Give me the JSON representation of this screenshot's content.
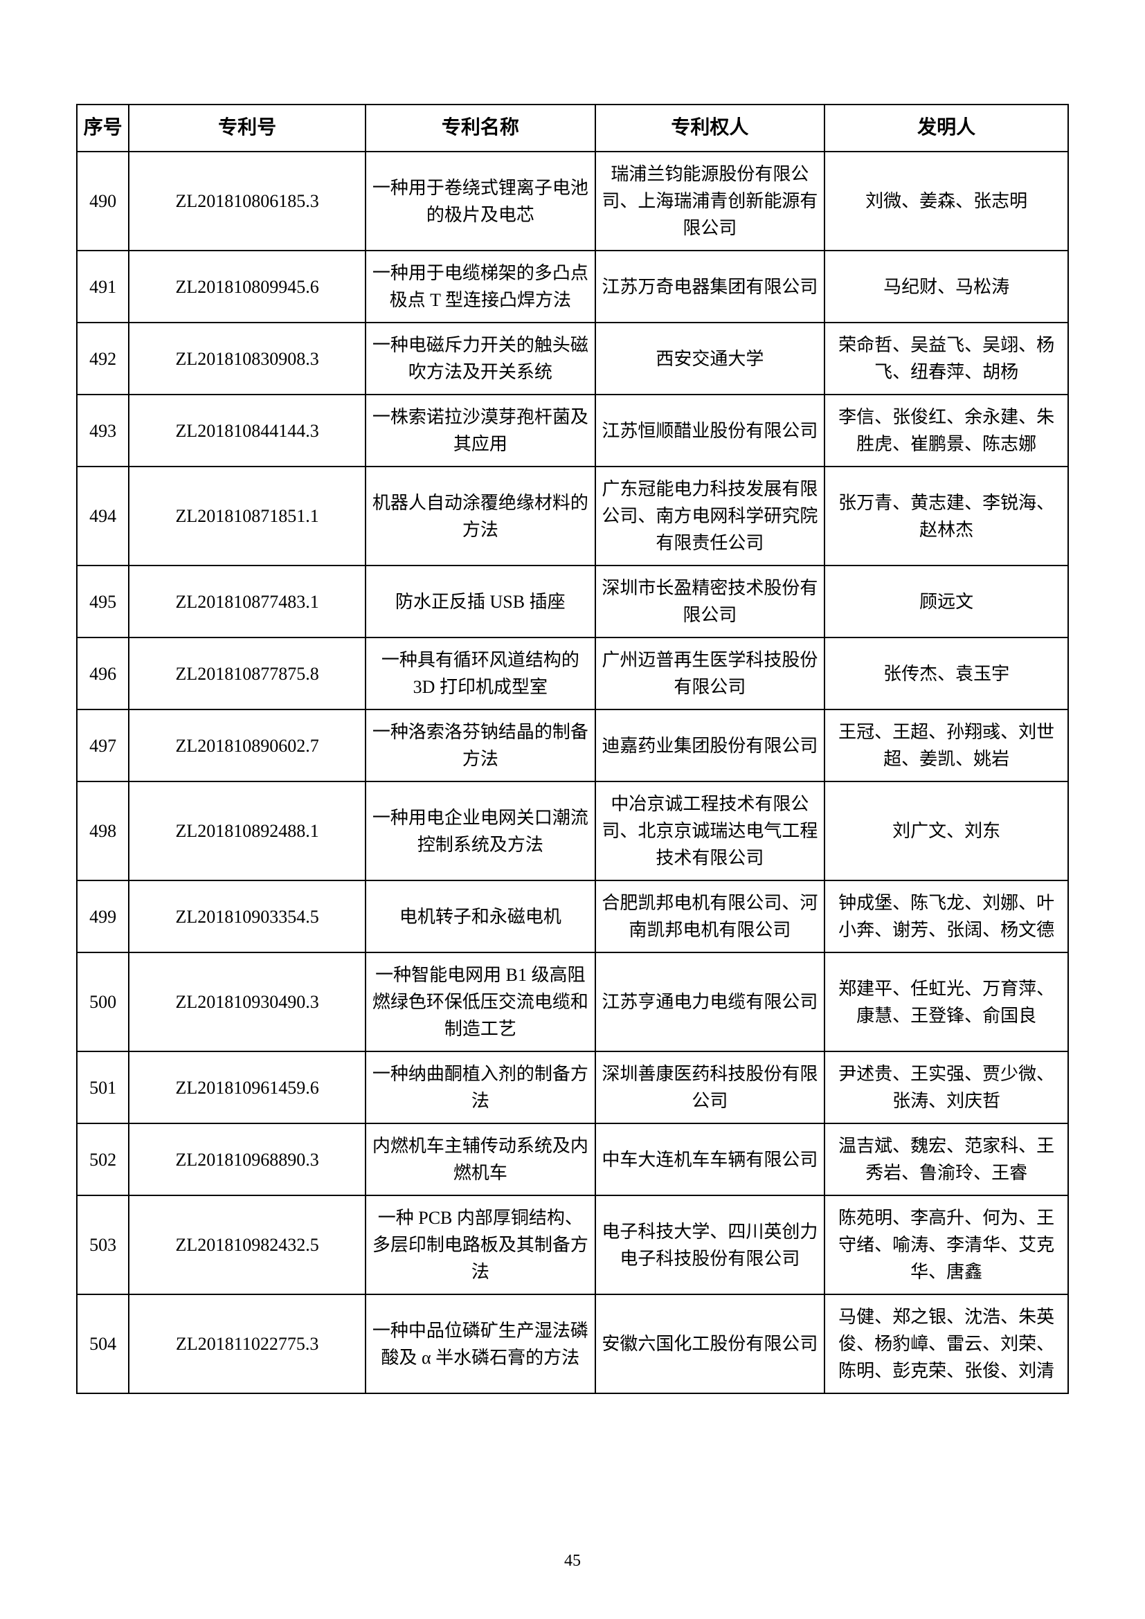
{
  "page_number": "45",
  "table": {
    "columns": [
      "序号",
      "专利号",
      "专利名称",
      "专利权人",
      "发明人"
    ],
    "rows": [
      {
        "seq": "490",
        "patent_no": "ZL201810806185.3",
        "name": "一种用于卷绕式锂离子电池的极片及电芯",
        "holder": "瑞浦兰钧能源股份有限公司、上海瑞浦青创新能源有限公司",
        "inventor": "刘微、姜森、张志明"
      },
      {
        "seq": "491",
        "patent_no": "ZL201810809945.6",
        "name": "一种用于电缆梯架的多凸点极点 T 型连接凸焊方法",
        "holder": "江苏万奇电器集团有限公司",
        "inventor": "马纪财、马松涛"
      },
      {
        "seq": "492",
        "patent_no": "ZL201810830908.3",
        "name": "一种电磁斥力开关的触头磁吹方法及开关系统",
        "holder": "西安交通大学",
        "inventor": "荣命哲、吴益飞、吴翊、杨飞、纽春萍、胡杨"
      },
      {
        "seq": "493",
        "patent_no": "ZL201810844144.3",
        "name": "一株索诺拉沙漠芽孢杆菌及其应用",
        "holder": "江苏恒顺醋业股份有限公司",
        "inventor": "李信、张俊红、余永建、朱胜虎、崔鹏景、陈志娜"
      },
      {
        "seq": "494",
        "patent_no": "ZL201810871851.1",
        "name": "机器人自动涂覆绝缘材料的方法",
        "holder": "广东冠能电力科技发展有限公司、南方电网科学研究院有限责任公司",
        "inventor": "张万青、黄志建、李锐海、赵林杰"
      },
      {
        "seq": "495",
        "patent_no": "ZL201810877483.1",
        "name": "防水正反插 USB 插座",
        "holder": "深圳市长盈精密技术股份有限公司",
        "inventor": "顾远文"
      },
      {
        "seq": "496",
        "patent_no": "ZL201810877875.8",
        "name": "一种具有循环风道结构的 3D 打印机成型室",
        "holder": "广州迈普再生医学科技股份有限公司",
        "inventor": "张传杰、袁玉宇"
      },
      {
        "seq": "497",
        "patent_no": "ZL201810890602.7",
        "name": "一种洛索洛芬钠结晶的制备方法",
        "holder": "迪嘉药业集团股份有限公司",
        "inventor": "王冠、王超、孙翔彧、刘世超、姜凯、姚岩"
      },
      {
        "seq": "498",
        "patent_no": "ZL201810892488.1",
        "name": "一种用电企业电网关口潮流控制系统及方法",
        "holder": "中冶京诚工程技术有限公司、北京京诚瑞达电气工程技术有限公司",
        "inventor": "刘广文、刘东"
      },
      {
        "seq": "499",
        "patent_no": "ZL201810903354.5",
        "name": "电机转子和永磁电机",
        "holder": "合肥凯邦电机有限公司、河南凯邦电机有限公司",
        "inventor": "钟成堡、陈飞龙、刘娜、叶小奔、谢芳、张阔、杨文德"
      },
      {
        "seq": "500",
        "patent_no": "ZL201810930490.3",
        "name": "一种智能电网用 B1 级高阻燃绿色环保低压交流电缆和制造工艺",
        "holder": "江苏亨通电力电缆有限公司",
        "inventor": "郑建平、任虹光、万育萍、康慧、王登锋、俞国良"
      },
      {
        "seq": "501",
        "patent_no": "ZL201810961459.6",
        "name": "一种纳曲酮植入剂的制备方法",
        "holder": "深圳善康医药科技股份有限公司",
        "inventor": "尹述贵、王实强、贾少微、张涛、刘庆哲"
      },
      {
        "seq": "502",
        "patent_no": "ZL201810968890.3",
        "name": "内燃机车主辅传动系统及内燃机车",
        "holder": "中车大连机车车辆有限公司",
        "inventor": "温吉斌、魏宏、范家科、王秀岩、鲁渝玲、王睿"
      },
      {
        "seq": "503",
        "patent_no": "ZL201810982432.5",
        "name": "一种 PCB 内部厚铜结构、多层印制电路板及其制备方法",
        "holder": "电子科技大学、四川英创力电子科技股份有限公司",
        "inventor": "陈苑明、李高升、何为、王守绪、喻涛、李清华、艾克华、唐鑫"
      },
      {
        "seq": "504",
        "patent_no": "ZL201811022775.3",
        "name": "一种中品位磷矿生产湿法磷酸及 α 半水磷石膏的方法",
        "holder": "安徽六国化工股份有限公司",
        "inventor": "马健、郑之银、沈浩、朱英俊、杨豹嶂、雷云、刘荣、陈明、彭克荣、张俊、刘清"
      }
    ]
  }
}
